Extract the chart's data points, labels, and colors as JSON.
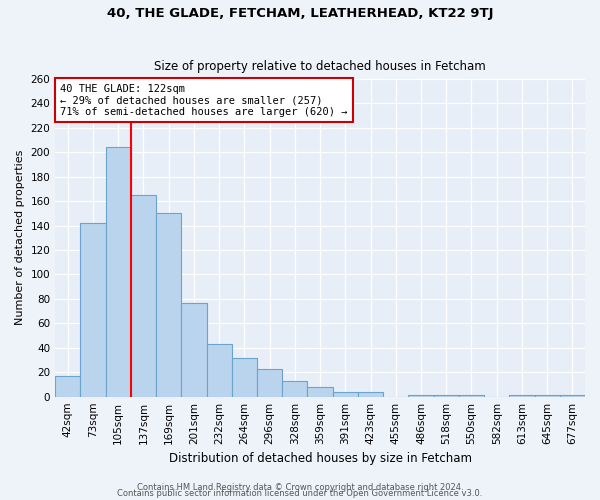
{
  "title": "40, THE GLADE, FETCHAM, LEATHERHEAD, KT22 9TJ",
  "subtitle": "Size of property relative to detached houses in Fetcham",
  "xlabel": "Distribution of detached houses by size in Fetcham",
  "ylabel": "Number of detached properties",
  "bin_labels": [
    "42sqm",
    "73sqm",
    "105sqm",
    "137sqm",
    "169sqm",
    "201sqm",
    "232sqm",
    "264sqm",
    "296sqm",
    "328sqm",
    "359sqm",
    "391sqm",
    "423sqm",
    "455sqm",
    "486sqm",
    "518sqm",
    "550sqm",
    "582sqm",
    "613sqm",
    "645sqm",
    "677sqm"
  ],
  "bar_heights": [
    17,
    142,
    204,
    165,
    150,
    77,
    43,
    32,
    23,
    13,
    8,
    4,
    4,
    0,
    1,
    1,
    1,
    0,
    1,
    1,
    1
  ],
  "bar_color": "#bad4ed",
  "bar_edge_color": "#6aa3cc",
  "red_line_x": 2.5,
  "annotation_text": "40 THE GLADE: 122sqm\n← 29% of detached houses are smaller (257)\n71% of semi-detached houses are larger (620) →",
  "annotation_box_color": "#ffffff",
  "annotation_box_edge": "#cc0000",
  "ylim": [
    0,
    260
  ],
  "yticks": [
    0,
    20,
    40,
    60,
    80,
    100,
    120,
    140,
    160,
    180,
    200,
    220,
    240,
    260
  ],
  "footer_line1": "Contains HM Land Registry data © Crown copyright and database right 2024.",
  "footer_line2": "Contains public sector information licensed under the Open Government Licence v3.0.",
  "background_color": "#eef2f9",
  "plot_bg_color": "#e8eef8",
  "grid_color": "#ffffff",
  "title_fontsize": 9.5,
  "subtitle_fontsize": 8.5,
  "ylabel_fontsize": 8,
  "xlabel_fontsize": 8.5,
  "tick_fontsize": 7.5,
  "footer_fontsize": 6
}
